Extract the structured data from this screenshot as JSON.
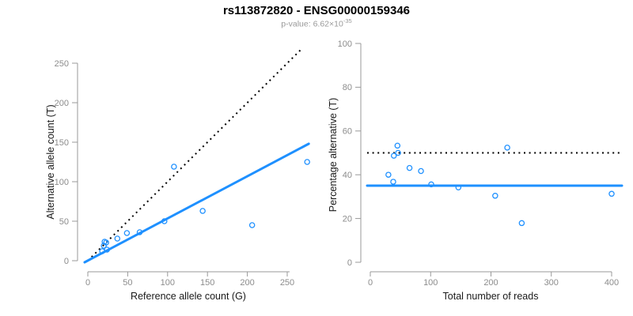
{
  "header": {
    "title": "rs113872820 - ENSG00000159346",
    "p_label": "p-value: ",
    "mantissa": "6.62",
    "times_symbol": "×",
    "base": "10",
    "exponent": "-35"
  },
  "colors": {
    "accent_blue": "#1E90FF",
    "reference_line_black": "#000000",
    "axis_gray": "#999999",
    "tick_label_gray": "#8c8c8c",
    "label_black": "#1a1a1a",
    "subtitle_gray": "#9a9a9a"
  },
  "chart_data": [
    {
      "type": "scatter",
      "xlabel": "Reference allele count (G)",
      "ylabel": "Alternative allele count (T)",
      "xlim": [
        0,
        250
      ],
      "ylim": [
        0,
        250
      ],
      "xticks": [
        0,
        50,
        100,
        150,
        200,
        250
      ],
      "yticks": [
        0,
        50,
        100,
        150,
        200,
        250
      ],
      "grid": false,
      "points": [
        [
          18,
          12
        ],
        [
          24,
          14
        ],
        [
          20,
          19
        ],
        [
          21,
          24
        ],
        [
          23,
          23
        ],
        [
          37,
          28
        ],
        [
          49,
          35
        ],
        [
          65,
          36
        ],
        [
          96,
          50
        ],
        [
          108,
          119
        ],
        [
          144,
          63
        ],
        [
          206,
          45
        ],
        [
          275,
          125
        ]
      ],
      "lines": [
        {
          "name": "identity-line",
          "style": "dotted",
          "color": "#000000",
          "from": [
            0,
            0
          ],
          "to": [
            268,
            268
          ]
        },
        {
          "name": "fit-line",
          "style": "solid",
          "color": "#1E90FF",
          "from": [
            -4,
            -2
          ],
          "to": [
            277,
            148
          ]
        }
      ]
    },
    {
      "type": "scatter",
      "xlabel": "Total number of reads",
      "ylabel": "Percentage alternative (T)",
      "xlim": [
        0,
        400
      ],
      "ylim": [
        0,
        100
      ],
      "xticks": [
        0,
        100,
        200,
        300,
        400
      ],
      "yticks": [
        0,
        20,
        40,
        60,
        80,
        100
      ],
      "grid": false,
      "points": [
        [
          30,
          40
        ],
        [
          38,
          36.8
        ],
        [
          39,
          48.7
        ],
        [
          45,
          53.3
        ],
        [
          46,
          50
        ],
        [
          65,
          43.1
        ],
        [
          84,
          41.7
        ],
        [
          101,
          35.6
        ],
        [
          146,
          34.2
        ],
        [
          227,
          52.4
        ],
        [
          207,
          30.4
        ],
        [
          251,
          17.9
        ],
        [
          400,
          31.3
        ]
      ],
      "lines": [
        {
          "name": "expected-50pct-line",
          "style": "dotted",
          "color": "#000000",
          "y": 50
        },
        {
          "name": "observed-ratio-line",
          "style": "solid",
          "color": "#1E90FF",
          "y": 35
        }
      ]
    }
  ]
}
